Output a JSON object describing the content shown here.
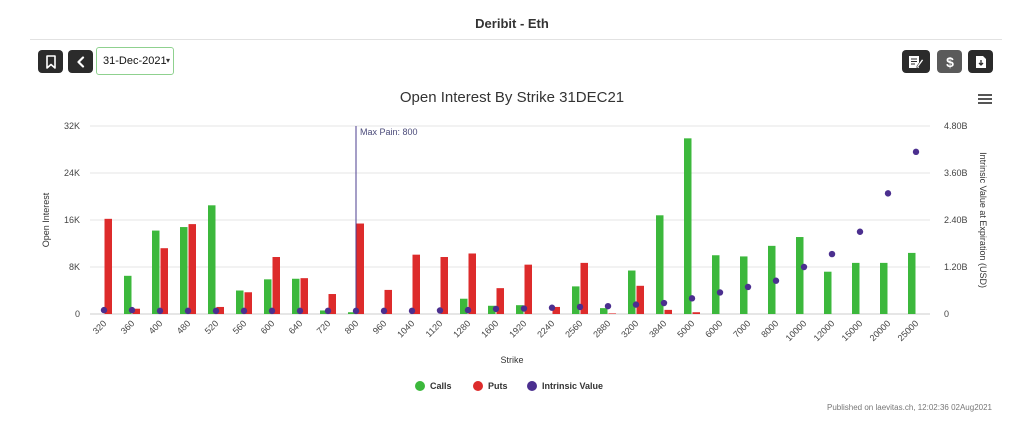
{
  "page": {
    "title": "Deribit - Eth",
    "date_value": "31-Dec-2021",
    "footer": "Published on laevitas.ch, 12:02:36 02Aug2021"
  },
  "toolbar": {
    "bookmark_icon": "bookmark-icon",
    "back_icon": "chevron-left-icon",
    "edit_icon": "edit-document-icon",
    "dollar_icon": "dollar-icon",
    "download_icon": "download-file-icon",
    "menu_icon": "hamburger-menu-icon"
  },
  "colors": {
    "calls": "#3cb83c",
    "puts": "#dd2b2b",
    "intrinsic": "#4b2f8f",
    "maxpain": "#4b3d8f"
  },
  "chart_data": {
    "type": "bar",
    "title": "Open Interest By Strike 31DEC21",
    "xlabel": "Strike",
    "ylabel": "Open Interest",
    "y2label": "Intrinsic Value at Expiration (USD)",
    "ylim": [
      0,
      32000
    ],
    "y2lim": [
      0,
      4800000000
    ],
    "yticks": [
      "0",
      "8K",
      "16K",
      "24K",
      "32K"
    ],
    "y2ticks": [
      "0",
      "1.20B",
      "2.40B",
      "3.60B",
      "4.80B"
    ],
    "grid": true,
    "legend_position": "bottom-center",
    "categories": [
      "320",
      "360",
      "400",
      "480",
      "520",
      "560",
      "600",
      "640",
      "720",
      "800",
      "960",
      "1040",
      "1120",
      "1280",
      "1600",
      "1920",
      "2240",
      "2560",
      "2880",
      "3200",
      "3840",
      "5000",
      "6000",
      "7000",
      "8000",
      "10000",
      "12000",
      "15000",
      "20000",
      "25000"
    ],
    "series": [
      {
        "name": "Calls",
        "type": "bar",
        "axis": "left",
        "values": [
          0,
          6500,
          14200,
          14800,
          18500,
          4000,
          5900,
          6000,
          600,
          300,
          0,
          0,
          0,
          2600,
          1400,
          1500,
          0,
          4700,
          1000,
          7400,
          16800,
          29900,
          10000,
          9800,
          11600,
          13100,
          7200,
          8700,
          8700,
          10400
        ]
      },
      {
        "name": "Puts",
        "type": "bar",
        "axis": "left",
        "values": [
          16200,
          900,
          11200,
          15300,
          1200,
          3700,
          9700,
          6100,
          3400,
          15400,
          4100,
          10100,
          9700,
          10300,
          4400,
          8400,
          1200,
          8700,
          100,
          4800,
          700,
          300,
          0,
          0,
          0,
          0,
          0,
          0,
          0,
          0
        ]
      },
      {
        "name": "Intrinsic Value",
        "type": "scatter",
        "axis": "right",
        "values": [
          100000000,
          100000000,
          80000000,
          80000000,
          80000000,
          80000000,
          80000000,
          80000000,
          80000000,
          80000000,
          80000000,
          80000000,
          90000000,
          100000000,
          130000000,
          140000000,
          160000000,
          180000000,
          200000000,
          240000000,
          280000000,
          400000000,
          550000000,
          690000000,
          850000000,
          1200000000,
          1530000000,
          2100000000,
          3080000000,
          4140000000
        ]
      }
    ],
    "annotations": [
      {
        "text": "Max Pain: 800",
        "x": "800"
      }
    ]
  }
}
